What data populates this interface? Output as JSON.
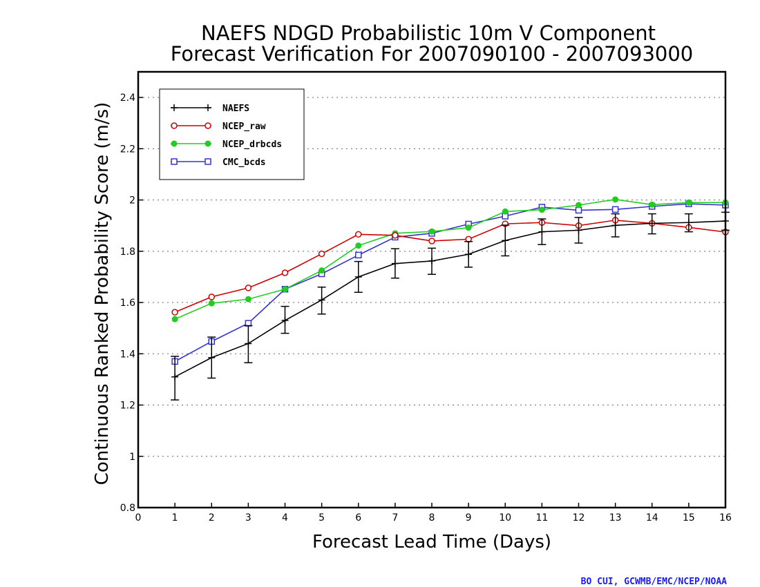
{
  "chart_data": {
    "type": "line",
    "title": [
      "NAEFS NDGD Probabilistic 10m V Component",
      "Forecast Verification For 2007090100 - 2007093000"
    ],
    "xlabel": "Forecast Lead Time (Days)",
    "ylabel": "Continuous Ranked Probability Score (m/s)",
    "xlim": [
      0,
      16
    ],
    "ylim": [
      0.8,
      2.5
    ],
    "xticks": [
      0,
      1,
      2,
      3,
      4,
      5,
      6,
      7,
      8,
      9,
      10,
      11,
      12,
      13,
      14,
      15,
      16
    ],
    "yticks": [
      0.8,
      1.0,
      1.2,
      1.4,
      1.6,
      1.8,
      2.0,
      2.2,
      2.4
    ],
    "ytick_labels": [
      "0.8",
      "1",
      "1.2",
      "1.4",
      "1.6",
      "1.8",
      "2",
      "2.2",
      "2.4"
    ],
    "grid": "horizontal-dotted",
    "legend_position": "top-left",
    "x": [
      1,
      2,
      3,
      4,
      5,
      6,
      7,
      8,
      9,
      10,
      11,
      12,
      13,
      14,
      15,
      16
    ],
    "series": [
      {
        "name": "NAEFS",
        "color": "#000000",
        "marker": "plus",
        "values": [
          1.31,
          1.385,
          1.44,
          1.53,
          1.61,
          1.7,
          1.752,
          1.762,
          1.788,
          1.842,
          1.876,
          1.882,
          1.901,
          1.909,
          1.912,
          1.918
        ],
        "error_low": [
          1.22,
          1.305,
          1.365,
          1.48,
          1.555,
          1.64,
          1.695,
          1.71,
          1.738,
          1.782,
          1.826,
          1.832,
          1.856,
          1.868,
          1.876,
          1.882
        ],
        "error_high": [
          1.39,
          1.465,
          1.51,
          1.585,
          1.66,
          1.76,
          1.81,
          1.812,
          1.838,
          1.902,
          1.926,
          1.932,
          1.946,
          1.946,
          1.946,
          1.952
        ]
      },
      {
        "name": "NCEP_raw",
        "color": "#cc0000",
        "marker": "open-circle",
        "values": [
          1.562,
          1.622,
          1.657,
          1.716,
          1.79,
          1.866,
          1.862,
          1.84,
          1.847,
          1.907,
          1.912,
          1.9,
          1.921,
          1.909,
          1.893,
          1.875
        ]
      },
      {
        "name": "NCEP_drbcds",
        "color": "#22cc22",
        "marker": "filled-circle",
        "values": [
          1.535,
          1.597,
          1.613,
          1.652,
          1.725,
          1.822,
          1.87,
          1.877,
          1.892,
          1.955,
          1.962,
          1.98,
          2.002,
          1.982,
          1.99,
          1.99
        ]
      },
      {
        "name": "CMC_bcds",
        "color": "#3333cc",
        "marker": "open-square",
        "values": [
          1.37,
          1.448,
          1.519,
          1.652,
          1.712,
          1.785,
          1.855,
          1.87,
          1.906,
          1.937,
          1.972,
          1.96,
          1.963,
          1.975,
          1.985,
          1.98
        ]
      }
    ]
  },
  "credit": "BO CUI, GCWMB/EMC/NCEP/NOAA"
}
